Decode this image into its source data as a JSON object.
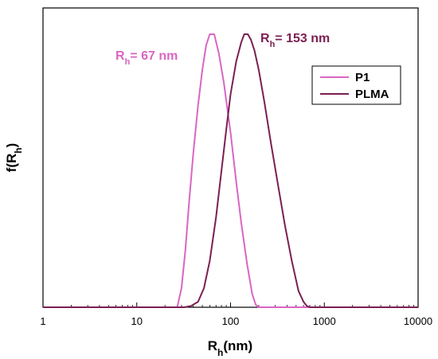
{
  "chart_data": {
    "type": "line",
    "xscale": "log",
    "xlim": [
      1,
      10000
    ],
    "ylim": [
      0,
      1
    ],
    "xticks": [
      "1",
      "10",
      "100",
      "1000",
      "10000"
    ],
    "xlabel": {
      "main": "R",
      "sub": "h",
      "rest": "(nm)"
    },
    "ylabel": {
      "main": "f(R",
      "sub": "h",
      "rest": ")"
    },
    "legend_position": "top-right",
    "grid": false,
    "series": [
      {
        "name": "P1",
        "color": "#d966c3",
        "x": [
          1,
          10,
          20,
          27,
          30,
          33,
          36,
          40,
          45,
          50,
          55,
          60,
          67,
          75,
          85,
          100,
          115,
          130,
          150,
          170,
          185,
          200,
          10000
        ],
        "y": [
          0,
          0,
          0,
          0,
          0.07,
          0.21,
          0.38,
          0.56,
          0.74,
          0.87,
          0.96,
          1.0,
          1.0,
          0.93,
          0.82,
          0.64,
          0.46,
          0.31,
          0.16,
          0.05,
          0.01,
          0,
          0
        ]
      },
      {
        "name": "PLMA",
        "color": "#7b1f52",
        "x": [
          1,
          20,
          32,
          38,
          45,
          52,
          60,
          70,
          80,
          90,
          100,
          115,
          130,
          140,
          153,
          165,
          180,
          200,
          230,
          270,
          320,
          380,
          450,
          530,
          600,
          650,
          700,
          10000
        ],
        "y": [
          0,
          0,
          0,
          0.005,
          0.02,
          0.07,
          0.17,
          0.33,
          0.5,
          0.65,
          0.78,
          0.9,
          0.97,
          1.0,
          1.0,
          0.98,
          0.94,
          0.87,
          0.75,
          0.6,
          0.45,
          0.3,
          0.17,
          0.06,
          0.02,
          0.005,
          0,
          0
        ]
      }
    ],
    "annotations": [
      {
        "main": "R",
        "sub": "h",
        "rest": "= 67 nm",
        "color": "#d966c3"
      },
      {
        "main": "R",
        "sub": "h",
        "rest": "= 153 nm",
        "color": "#7b1f52"
      }
    ]
  }
}
